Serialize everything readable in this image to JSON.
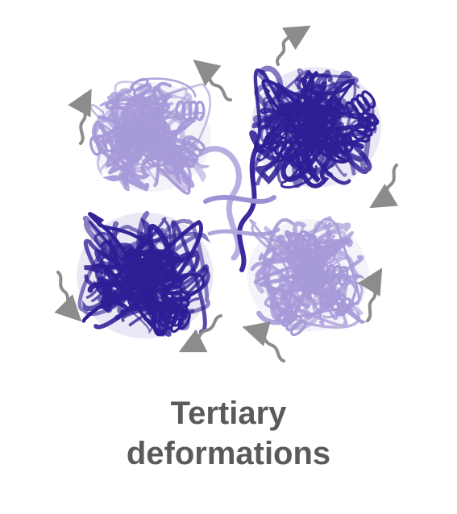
{
  "caption": {
    "line1": "Tertiary",
    "line2": "deformations"
  },
  "colors": {
    "dark_subunit": "#2e1f96",
    "light_subunit": "#a79ad8",
    "arrow": "#8c8c8c",
    "caption_text": "#5a5a5a"
  },
  "subunits": [
    {
      "name": "top-left",
      "shade": "light"
    },
    {
      "name": "top-right",
      "shade": "dark"
    },
    {
      "name": "bottom-left",
      "shade": "dark"
    },
    {
      "name": "bottom-right",
      "shade": "light"
    }
  ],
  "icons": [
    "wavy-arrow-icon"
  ]
}
